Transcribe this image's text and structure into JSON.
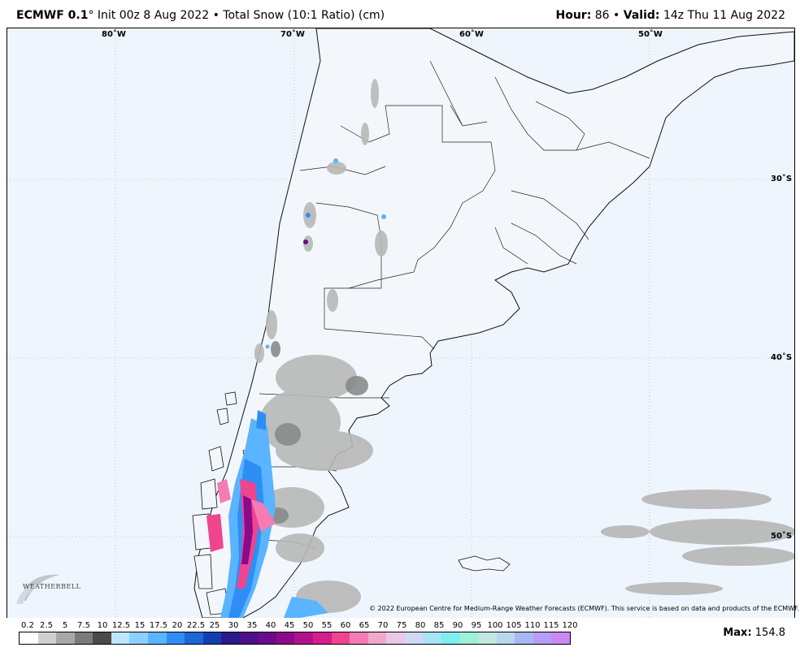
{
  "header": {
    "model": "ECMWF 0.1",
    "degree": "°",
    "init": "Init 00z 8 Aug 2022",
    "sep": "•",
    "product": "Total Snow (10:1 Ratio) (cm)",
    "hour_label": "Hour:",
    "hour_value": "86",
    "valid_label": "Valid:",
    "valid_value": "14z Thu 11 Aug 2022"
  },
  "longitudes": [
    "80˚W",
    "70˚W",
    "60˚W",
    "50˚W"
  ],
  "latitudes": [
    "30˚S",
    "40˚S",
    "50˚S"
  ],
  "copyright": "© 2022 European Centre for Medium-Range Weather Forecasts (ECMWF). This service is based on data and products of the ECMWF.",
  "logo_text": "WEATHERBELL",
  "legend": {
    "labels": [
      "0.2",
      "2.5",
      "5",
      "7.5",
      "10",
      "12.5",
      "15",
      "17.5",
      "20",
      "22.5",
      "25",
      "30",
      "35",
      "40",
      "45",
      "50",
      "55",
      "60",
      "65",
      "70",
      "75",
      "80",
      "85",
      "90",
      "95",
      "100",
      "105",
      "110",
      "115",
      "120"
    ],
    "colors": [
      "#ffffff",
      "#d0d0d0",
      "#a8a8a8",
      "#7a7a7a",
      "#4a4a4a",
      "#bfe6ff",
      "#8cd0ff",
      "#5ab4ff",
      "#2f8ef5",
      "#1c66d8",
      "#123fb0",
      "#2a1a8a",
      "#4b0f8a",
      "#6a0a8c",
      "#8b0a8c",
      "#b0128c",
      "#d41e8c",
      "#f0448f",
      "#f47cb2",
      "#f2a8cc",
      "#e8c8e6",
      "#d0d8f4",
      "#a8e4f8",
      "#7eeef0",
      "#9ef0d8",
      "#c0e8e0",
      "#b8d8f0",
      "#a8b8f4",
      "#b69ef6",
      "#cc88f2"
    ]
  },
  "max_label": "Max:",
  "max_value": "154.8"
}
